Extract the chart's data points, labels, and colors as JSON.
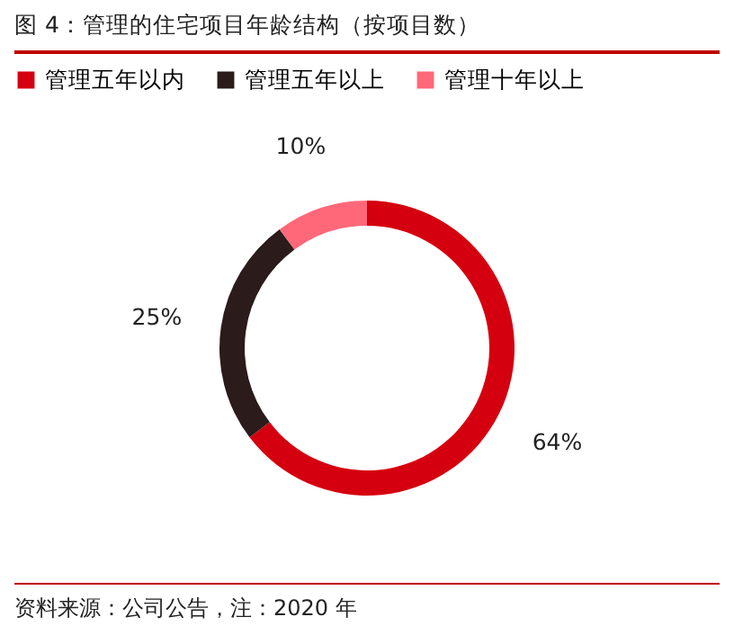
{
  "chart_data": {
    "type": "donut",
    "title": "图 4：管理的住宅项目年龄结构（按项目数）",
    "categories": [
      "管理五年以内",
      "管理五年以上",
      "管理十年以上"
    ],
    "values": [
      64,
      25,
      10
    ],
    "colors": [
      "#d5000f",
      "#2b1b1b",
      "#ff6878"
    ],
    "value_labels": [
      "64%",
      "25%",
      "10%"
    ],
    "legend": "top",
    "annotations": [
      "资料来源：公司公告，注：2020 年"
    ]
  }
}
